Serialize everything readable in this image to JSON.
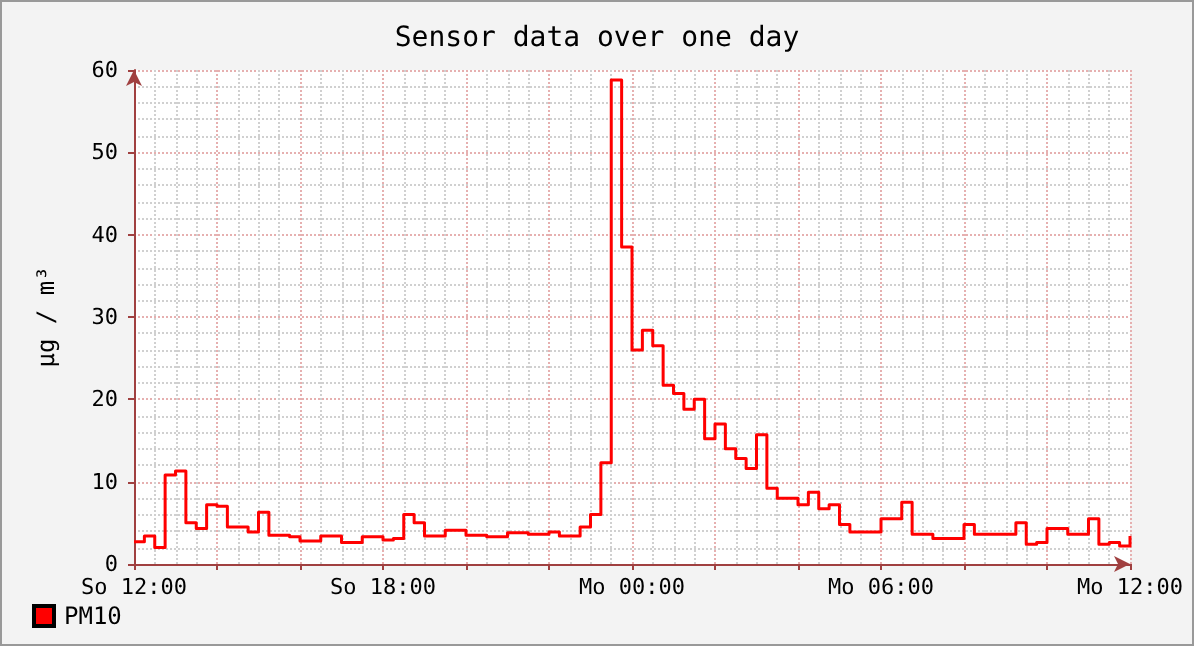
{
  "chart_data": {
    "type": "step",
    "title": "Sensor data over one day",
    "ylabel": "µg / m³",
    "categories": [
      "So 12:00",
      null,
      null,
      null,
      null,
      null,
      null,
      null,
      null,
      null,
      null,
      null,
      null,
      null,
      null,
      null,
      null,
      null,
      null,
      null,
      null,
      null,
      null,
      null,
      "So 18:00",
      null,
      null,
      null,
      null,
      null,
      null,
      null,
      null,
      null,
      null,
      null,
      null,
      null,
      null,
      null,
      null,
      null,
      null,
      null,
      null,
      null,
      null,
      null,
      "Mo 00:00",
      null,
      null,
      null,
      null,
      null,
      null,
      null,
      null,
      null,
      null,
      null,
      null,
      null,
      null,
      null,
      null,
      null,
      null,
      null,
      null,
      null,
      null,
      null,
      "Mo 06:00",
      null,
      null,
      null,
      null,
      null,
      null,
      null,
      null,
      null,
      null,
      null,
      null,
      null,
      null,
      null,
      null,
      null,
      null,
      null,
      null,
      null,
      null,
      null,
      "Mo 12:00"
    ],
    "series": [
      {
        "name": "PM10",
        "color": "#ff0000",
        "values": [
          2.7,
          3.4,
          2.0,
          10.8,
          11.3,
          5,
          4.3,
          7.2,
          7,
          4.5,
          4.5,
          3.9,
          6.3,
          3.5,
          3.5,
          3.3,
          2.8,
          2.8,
          3.4,
          3.4,
          2.6,
          2.6,
          3.3,
          3.3,
          2.9,
          3.1,
          6,
          5,
          3.4,
          3.4,
          4.1,
          4.1,
          3.5,
          3.5,
          3.3,
          3.3,
          3.8,
          3.8,
          3.6,
          3.6,
          3.9,
          3.4,
          3.4,
          4.5,
          6,
          12.3,
          58.8,
          38.5,
          26,
          28.4,
          26.5,
          21.7,
          20.7,
          18.8,
          20,
          15.2,
          17,
          14,
          12.8,
          11.6,
          15.7,
          9.2,
          8,
          8,
          7.2,
          8.7,
          6.7,
          7.2,
          4.8,
          3.9,
          3.9,
          3.9,
          5.5,
          5.5,
          7.5,
          3.6,
          3.6,
          3.1,
          3.1,
          3.1,
          4.8,
          3.6,
          3.6,
          3.6,
          3.6,
          5,
          2.4,
          2.6,
          4.3,
          4.3,
          3.6,
          3.6,
          5.5,
          2.4,
          2.6,
          2.2,
          3.4
        ]
      }
    ],
    "ylim": [
      0,
      60
    ],
    "yticks": [
      0,
      10,
      20,
      30,
      40,
      50,
      60
    ],
    "grid": true,
    "legend": "bottom left",
    "marker": "none",
    "line_style": "solid"
  }
}
